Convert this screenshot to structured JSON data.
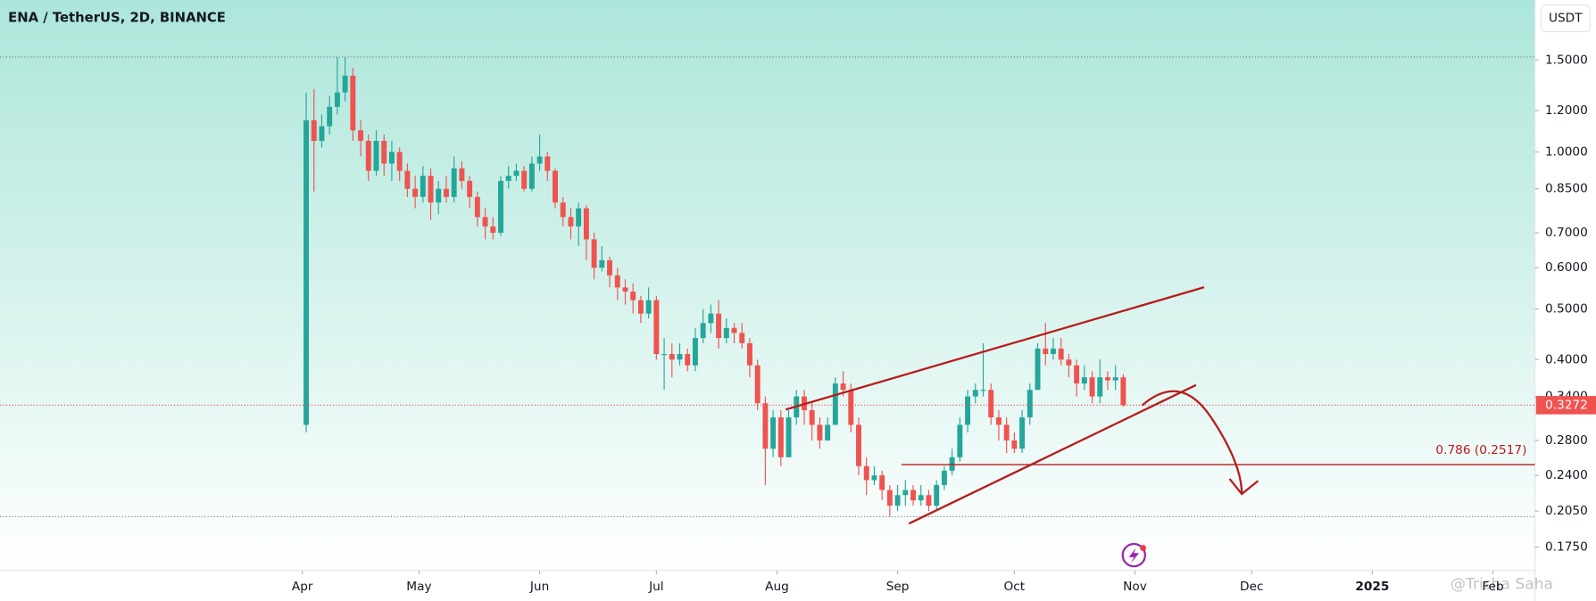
{
  "chart_data": {
    "type": "candlestick",
    "title": "ENA / TetherUS, 2D, BINANCE",
    "unit_button": "USDT",
    "watermark": "@Trisha Saha",
    "log_scale": true,
    "up_color": "#26a69a",
    "down_color": "#ef5350",
    "open": [
      0.3,
      1.15,
      1.05,
      1.12,
      1.22,
      1.3,
      1.4,
      1.1,
      1.05,
      0.92,
      1.05,
      0.95,
      1.0,
      0.92,
      0.85,
      0.82,
      0.9,
      0.8,
      0.85,
      0.82,
      0.93,
      0.88,
      0.82,
      0.75,
      0.72,
      0.7,
      0.88,
      0.9,
      0.92,
      0.85,
      0.95,
      0.98,
      0.92,
      0.8,
      0.75,
      0.72,
      0.78,
      0.68,
      0.6,
      0.62,
      0.58,
      0.55,
      0.54,
      0.52,
      0.49,
      0.52,
      0.41,
      0.41,
      0.4,
      0.41,
      0.39,
      0.44,
      0.47,
      0.49,
      0.44,
      0.46,
      0.45,
      0.43,
      0.39,
      0.33,
      0.27,
      0.31,
      0.26,
      0.31,
      0.34,
      0.32,
      0.3,
      0.28,
      0.3,
      0.36,
      0.35,
      0.3,
      0.25,
      0.235,
      0.24,
      0.225,
      0.21,
      0.22,
      0.225,
      0.215,
      0.22,
      0.21,
      0.23,
      0.245,
      0.26,
      0.3,
      0.34,
      0.35,
      0.35,
      0.31,
      0.3,
      0.28,
      0.27,
      0.31,
      0.35,
      0.42,
      0.41,
      0.42,
      0.4,
      0.39,
      0.36,
      0.37,
      0.34,
      0.37,
      0.365,
      0.37
    ],
    "high": [
      1.3,
      1.32,
      1.18,
      1.28,
      1.52,
      1.52,
      1.45,
      1.15,
      1.08,
      1.1,
      1.08,
      1.05,
      1.02,
      0.95,
      0.9,
      0.94,
      0.93,
      0.88,
      0.9,
      0.98,
      0.96,
      0.9,
      0.84,
      0.78,
      0.75,
      0.9,
      0.94,
      0.95,
      0.94,
      0.98,
      1.08,
      1.0,
      0.93,
      0.82,
      0.78,
      0.8,
      0.79,
      0.7,
      0.66,
      0.63,
      0.6,
      0.57,
      0.56,
      0.53,
      0.55,
      0.53,
      0.44,
      0.43,
      0.43,
      0.42,
      0.46,
      0.5,
      0.51,
      0.52,
      0.48,
      0.47,
      0.47,
      0.44,
      0.4,
      0.34,
      0.32,
      0.32,
      0.32,
      0.35,
      0.35,
      0.33,
      0.31,
      0.31,
      0.37,
      0.38,
      0.36,
      0.31,
      0.26,
      0.25,
      0.245,
      0.23,
      0.23,
      0.235,
      0.23,
      0.23,
      0.225,
      0.235,
      0.25,
      0.27,
      0.31,
      0.35,
      0.36,
      0.43,
      0.36,
      0.32,
      0.31,
      0.29,
      0.32,
      0.36,
      0.43,
      0.47,
      0.44,
      0.44,
      0.41,
      0.4,
      0.39,
      0.38,
      0.4,
      0.38,
      0.39,
      0.375
    ],
    "low": [
      0.29,
      0.84,
      1.02,
      1.08,
      1.18,
      1.25,
      1.05,
      0.98,
      0.88,
      0.9,
      0.9,
      0.88,
      0.88,
      0.82,
      0.78,
      0.8,
      0.74,
      0.76,
      0.8,
      0.8,
      0.85,
      0.78,
      0.72,
      0.68,
      0.68,
      0.69,
      0.85,
      0.88,
      0.84,
      0.84,
      0.92,
      0.88,
      0.78,
      0.72,
      0.68,
      0.66,
      0.62,
      0.57,
      0.59,
      0.55,
      0.52,
      0.51,
      0.49,
      0.47,
      0.48,
      0.4,
      0.35,
      0.37,
      0.39,
      0.38,
      0.38,
      0.43,
      0.45,
      0.42,
      0.43,
      0.43,
      0.42,
      0.37,
      0.32,
      0.23,
      0.26,
      0.25,
      0.26,
      0.3,
      0.3,
      0.28,
      0.27,
      0.28,
      0.3,
      0.34,
      0.29,
      0.24,
      0.22,
      0.23,
      0.215,
      0.2,
      0.205,
      0.21,
      0.21,
      0.21,
      0.205,
      0.205,
      0.225,
      0.24,
      0.255,
      0.29,
      0.33,
      0.34,
      0.3,
      0.28,
      0.265,
      0.265,
      0.265,
      0.3,
      0.35,
      0.39,
      0.4,
      0.39,
      0.37,
      0.34,
      0.35,
      0.33,
      0.33,
      0.35,
      0.35,
      0.325
    ],
    "close": [
      1.15,
      1.05,
      1.12,
      1.22,
      1.3,
      1.4,
      1.1,
      1.05,
      0.92,
      1.05,
      0.95,
      1.0,
      0.92,
      0.85,
      0.82,
      0.9,
      0.8,
      0.85,
      0.82,
      0.93,
      0.88,
      0.82,
      0.75,
      0.72,
      0.7,
      0.88,
      0.9,
      0.92,
      0.85,
      0.95,
      0.98,
      0.92,
      0.8,
      0.75,
      0.72,
      0.78,
      0.68,
      0.6,
      0.62,
      0.58,
      0.55,
      0.54,
      0.52,
      0.49,
      0.52,
      0.41,
      0.41,
      0.4,
      0.41,
      0.39,
      0.44,
      0.47,
      0.49,
      0.44,
      0.46,
      0.45,
      0.43,
      0.39,
      0.33,
      0.27,
      0.31,
      0.26,
      0.31,
      0.34,
      0.32,
      0.3,
      0.28,
      0.3,
      0.36,
      0.35,
      0.3,
      0.25,
      0.235,
      0.24,
      0.225,
      0.21,
      0.22,
      0.225,
      0.215,
      0.22,
      0.21,
      0.23,
      0.245,
      0.26,
      0.3,
      0.34,
      0.35,
      0.35,
      0.31,
      0.3,
      0.28,
      0.27,
      0.31,
      0.35,
      0.42,
      0.41,
      0.42,
      0.4,
      0.39,
      0.36,
      0.37,
      0.34,
      0.37,
      0.365,
      0.37,
      0.3272
    ],
    "xlim": [
      -39.35,
      157.9
    ],
    "xticks": [
      {
        "value": -0.5,
        "label": "Apr"
      },
      {
        "value": 14.5,
        "label": "May"
      },
      {
        "value": 30,
        "label": "Jun"
      },
      {
        "value": 45,
        "label": "Jul"
      },
      {
        "value": 60.5,
        "label": "Aug"
      },
      {
        "value": 76,
        "label": "Sep"
      },
      {
        "value": 91,
        "label": "Oct"
      },
      {
        "value": 106.5,
        "label": "Nov"
      },
      {
        "value": 121.5,
        "label": "Dec"
      },
      {
        "value": 137,
        "label": "2025"
      },
      {
        "value": 152.5,
        "label": "Feb"
      }
    ],
    "ylim": [
      0.1578,
      1.955
    ],
    "yticks": [
      {
        "value": 1.5,
        "label": "1.5000"
      },
      {
        "value": 1.2,
        "label": "1.2000"
      },
      {
        "value": 1.0,
        "label": "1.0000"
      },
      {
        "value": 0.85,
        "label": "0.8500"
      },
      {
        "value": 0.7,
        "label": "0.7000"
      },
      {
        "value": 0.6,
        "label": "0.6000"
      },
      {
        "value": 0.5,
        "label": "0.5000"
      },
      {
        "value": 0.4,
        "label": "0.4000"
      },
      {
        "value": 0.34,
        "label": "0.3400"
      },
      {
        "value": 0.28,
        "label": "0.2800"
      },
      {
        "value": 0.24,
        "label": "0.2400"
      },
      {
        "value": 0.205,
        "label": "0.2050"
      },
      {
        "value": 0.175,
        "label": "0.1750"
      }
    ],
    "fib_level": {
      "value": 0.2517,
      "label": "0.786 (0.2517)",
      "color": "#b71c1c"
    }
  }
}
